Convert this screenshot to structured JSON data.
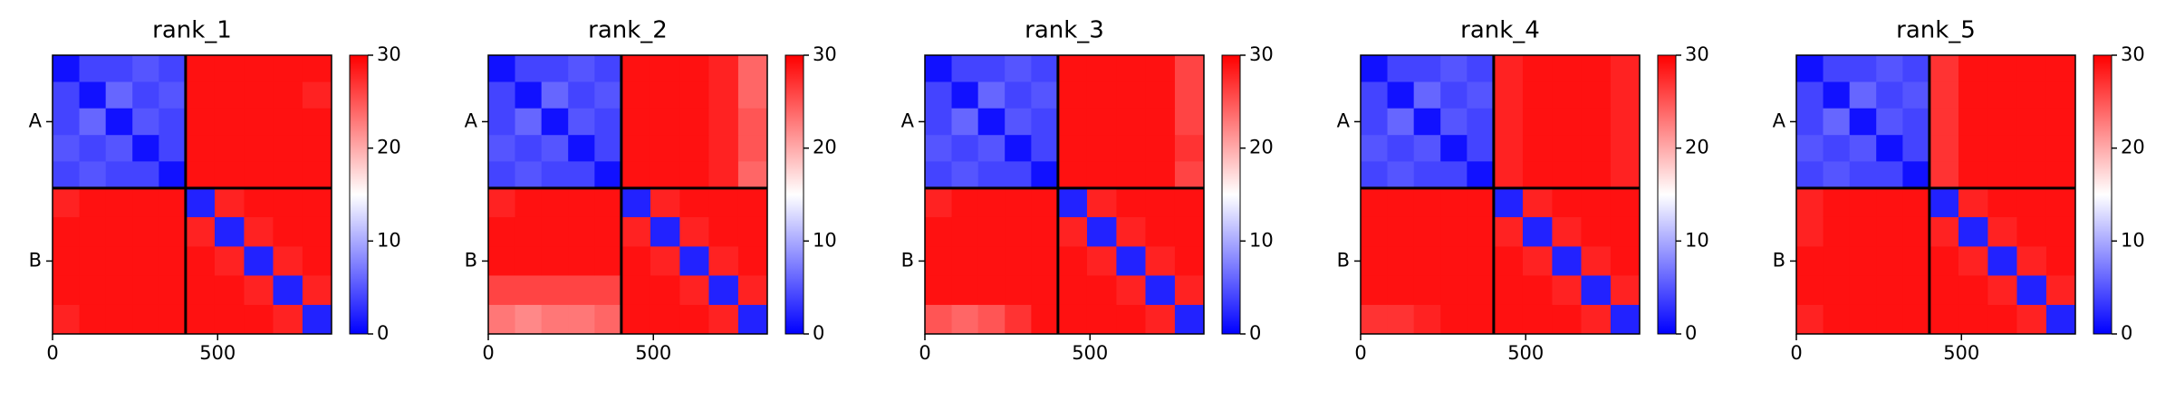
{
  "chart_data": [
    {
      "type": "heatmap",
      "title": "rank_1",
      "cmap": "bwr",
      "clim": [
        0,
        30
      ],
      "colorbar_ticks": [
        0,
        10,
        20,
        30
      ],
      "edges": [
        0,
        81,
        161,
        242,
        322,
        403,
        491,
        580,
        668,
        757,
        845
      ],
      "xlim": [
        0,
        845
      ],
      "ylim": [
        845,
        0
      ],
      "xticks": [
        0,
        500
      ],
      "yticks": [
        {
          "value": 201.5,
          "label": "A"
        },
        {
          "value": 624,
          "label": "B"
        }
      ],
      "chain_breaks": [
        403
      ],
      "values": [
        [
          1,
          4,
          4,
          5,
          4,
          29,
          29,
          29,
          29,
          29
        ],
        [
          4,
          1,
          6,
          4,
          5,
          29,
          29,
          29,
          29,
          28
        ],
        [
          4,
          6,
          1,
          5,
          4,
          29,
          29,
          29,
          29,
          29
        ],
        [
          5,
          4,
          5,
          1,
          4,
          29,
          29,
          29,
          29,
          29
        ],
        [
          4,
          5,
          4,
          4,
          1,
          29,
          29,
          29,
          29,
          29
        ],
        [
          28,
          29,
          29,
          29,
          29,
          2,
          28,
          29,
          29,
          29
        ],
        [
          29,
          29,
          29,
          29,
          29,
          28,
          2,
          28,
          29,
          29
        ],
        [
          29,
          29,
          29,
          29,
          29,
          29,
          28,
          2,
          28,
          29
        ],
        [
          29,
          29,
          29,
          29,
          29,
          29,
          29,
          28,
          2,
          28
        ],
        [
          28,
          29,
          29,
          29,
          29,
          29,
          29,
          29,
          28,
          2
        ]
      ]
    },
    {
      "type": "heatmap",
      "title": "rank_2",
      "cmap": "bwr",
      "clim": [
        0,
        30
      ],
      "colorbar_ticks": [
        0,
        10,
        20,
        30
      ],
      "edges": [
        0,
        81,
        161,
        242,
        322,
        403,
        491,
        580,
        668,
        757,
        845
      ],
      "xlim": [
        0,
        845
      ],
      "ylim": [
        845,
        0
      ],
      "xticks": [
        0,
        500
      ],
      "yticks": [
        {
          "value": 201.5,
          "label": "A"
        },
        {
          "value": 624,
          "label": "B"
        }
      ],
      "chain_breaks": [
        403
      ],
      "values": [
        [
          1,
          4,
          4,
          5,
          4,
          29,
          29,
          29,
          28,
          24
        ],
        [
          4,
          1,
          6,
          4,
          5,
          29,
          29,
          29,
          28,
          24
        ],
        [
          4,
          6,
          1,
          5,
          4,
          29,
          29,
          29,
          28,
          25
        ],
        [
          5,
          4,
          5,
          1,
          4,
          29,
          29,
          29,
          28,
          25
        ],
        [
          4,
          5,
          4,
          4,
          1,
          29,
          29,
          29,
          28,
          24
        ],
        [
          28,
          29,
          29,
          29,
          29,
          2,
          28,
          29,
          29,
          29
        ],
        [
          29,
          29,
          29,
          29,
          29,
          28,
          2,
          28,
          29,
          29
        ],
        [
          29,
          29,
          29,
          29,
          29,
          29,
          28,
          2,
          28,
          29
        ],
        [
          26,
          26,
          26,
          26,
          26,
          29,
          29,
          28,
          2,
          28
        ],
        [
          23,
          22,
          23,
          23,
          24,
          29,
          29,
          29,
          28,
          2
        ]
      ]
    },
    {
      "type": "heatmap",
      "title": "rank_3",
      "cmap": "bwr",
      "clim": [
        0,
        30
      ],
      "colorbar_ticks": [
        0,
        10,
        20,
        30
      ],
      "edges": [
        0,
        81,
        161,
        242,
        322,
        403,
        491,
        580,
        668,
        757,
        845
      ],
      "xlim": [
        0,
        845
      ],
      "ylim": [
        845,
        0
      ],
      "xticks": [
        0,
        500
      ],
      "yticks": [
        {
          "value": 201.5,
          "label": "A"
        },
        {
          "value": 624,
          "label": "B"
        }
      ],
      "chain_breaks": [
        403
      ],
      "values": [
        [
          1,
          4,
          4,
          5,
          4,
          29,
          29,
          29,
          29,
          26
        ],
        [
          4,
          1,
          6,
          4,
          5,
          29,
          29,
          29,
          29,
          26
        ],
        [
          4,
          6,
          1,
          5,
          4,
          29,
          29,
          29,
          29,
          26
        ],
        [
          5,
          4,
          5,
          1,
          4,
          29,
          29,
          29,
          29,
          27
        ],
        [
          4,
          5,
          4,
          4,
          1,
          29,
          29,
          29,
          29,
          26
        ],
        [
          28,
          29,
          29,
          29,
          29,
          2,
          28,
          29,
          29,
          29
        ],
        [
          29,
          29,
          29,
          29,
          29,
          28,
          2,
          28,
          29,
          29
        ],
        [
          29,
          29,
          29,
          29,
          29,
          29,
          28,
          2,
          28,
          29
        ],
        [
          29,
          29,
          29,
          29,
          29,
          29,
          29,
          28,
          2,
          28
        ],
        [
          25,
          24,
          25,
          27,
          29,
          29,
          29,
          29,
          28,
          2
        ]
      ]
    },
    {
      "type": "heatmap",
      "title": "rank_4",
      "cmap": "bwr",
      "clim": [
        0,
        30
      ],
      "colorbar_ticks": [
        0,
        10,
        20,
        30
      ],
      "edges": [
        0,
        81,
        161,
        242,
        322,
        403,
        491,
        580,
        668,
        757,
        845
      ],
      "xlim": [
        0,
        845
      ],
      "ylim": [
        845,
        0
      ],
      "xticks": [
        0,
        500
      ],
      "yticks": [
        {
          "value": 201.5,
          "label": "A"
        },
        {
          "value": 624,
          "label": "B"
        }
      ],
      "chain_breaks": [
        403
      ],
      "values": [
        [
          1,
          4,
          4,
          5,
          4,
          28,
          29,
          29,
          29,
          28
        ],
        [
          4,
          1,
          6,
          4,
          5,
          28,
          29,
          29,
          29,
          28
        ],
        [
          4,
          6,
          1,
          5,
          4,
          28,
          29,
          29,
          29,
          28
        ],
        [
          5,
          4,
          5,
          1,
          4,
          28,
          29,
          29,
          29,
          28
        ],
        [
          4,
          5,
          4,
          4,
          1,
          28,
          29,
          29,
          29,
          28
        ],
        [
          29,
          29,
          29,
          29,
          29,
          2,
          28,
          29,
          29,
          29
        ],
        [
          29,
          29,
          29,
          29,
          29,
          28,
          2,
          28,
          29,
          29
        ],
        [
          29,
          29,
          29,
          29,
          29,
          29,
          28,
          2,
          28,
          29
        ],
        [
          29,
          29,
          29,
          29,
          29,
          29,
          29,
          28,
          2,
          28
        ],
        [
          27,
          27,
          28,
          29,
          29,
          29,
          29,
          29,
          28,
          2
        ]
      ]
    },
    {
      "type": "heatmap",
      "title": "rank_5",
      "cmap": "bwr",
      "clim": [
        0,
        30
      ],
      "colorbar_ticks": [
        0,
        10,
        20,
        30
      ],
      "edges": [
        0,
        81,
        161,
        242,
        322,
        403,
        491,
        580,
        668,
        757,
        845
      ],
      "xlim": [
        0,
        845
      ],
      "ylim": [
        845,
        0
      ],
      "xticks": [
        0,
        500
      ],
      "yticks": [
        {
          "value": 201.5,
          "label": "A"
        },
        {
          "value": 624,
          "label": "B"
        }
      ],
      "chain_breaks": [
        403
      ],
      "values": [
        [
          1,
          4,
          4,
          5,
          4,
          27,
          29,
          29,
          29,
          29
        ],
        [
          4,
          1,
          6,
          4,
          5,
          27,
          29,
          29,
          29,
          29
        ],
        [
          4,
          6,
          1,
          5,
          4,
          27,
          29,
          29,
          29,
          29
        ],
        [
          5,
          4,
          5,
          1,
          4,
          27,
          29,
          29,
          29,
          29
        ],
        [
          4,
          5,
          4,
          4,
          1,
          27,
          29,
          29,
          29,
          29
        ],
        [
          28,
          29,
          29,
          29,
          29,
          2,
          28,
          29,
          29,
          29
        ],
        [
          28,
          29,
          29,
          29,
          29,
          28,
          2,
          28,
          29,
          29
        ],
        [
          29,
          29,
          29,
          29,
          29,
          29,
          28,
          2,
          28,
          29
        ],
        [
          29,
          29,
          29,
          29,
          29,
          29,
          29,
          28,
          2,
          28
        ],
        [
          28,
          29,
          29,
          29,
          29,
          29,
          29,
          29,
          28,
          2
        ]
      ]
    }
  ]
}
